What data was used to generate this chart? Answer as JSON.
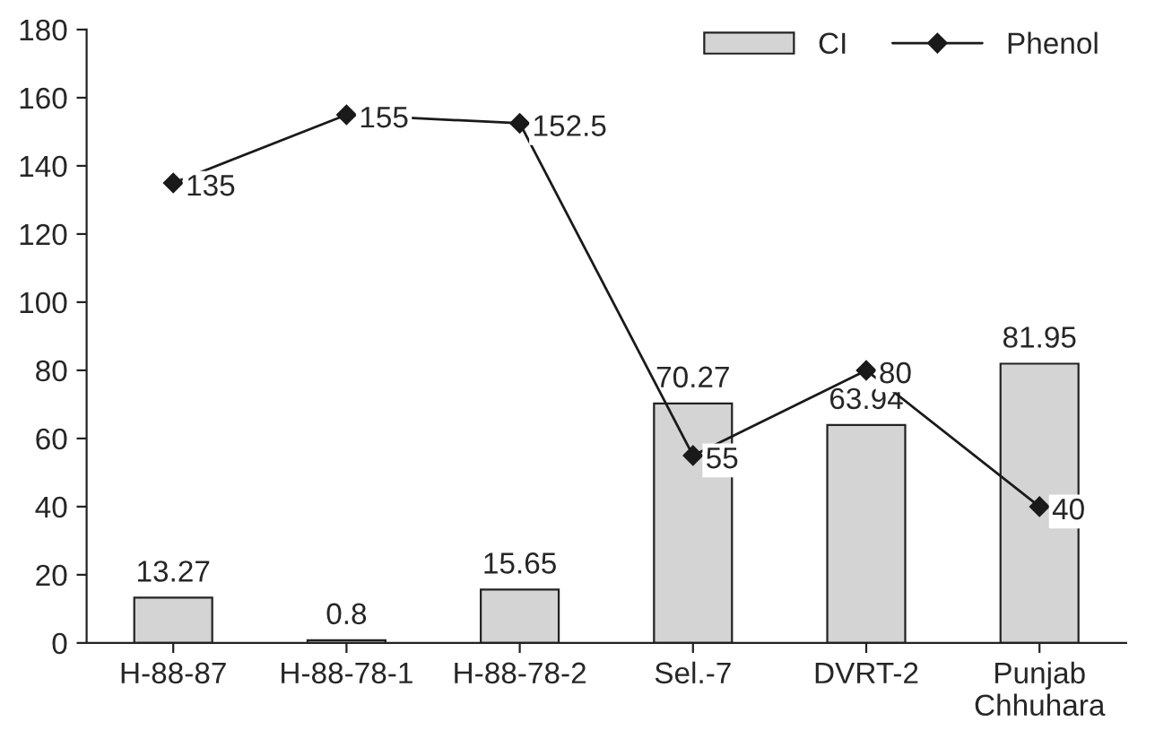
{
  "chart_data": {
    "type": "bar",
    "categories": [
      "H-88-87",
      "H-88-78-1",
      "H-88-78-2",
      "Sel.-7",
      "DVRT-2",
      "Punjab\nChhuhara"
    ],
    "series": [
      {
        "name": "CI",
        "color": "#d4d4d4",
        "values": [
          13.27,
          0.8,
          15.65,
          70.27,
          63.94,
          81.95
        ]
      },
      {
        "name": "Phenol",
        "type": "line",
        "color": "#1a1a1a",
        "marker": "diamond",
        "values": [
          135,
          155,
          152.5,
          55,
          80,
          40
        ]
      }
    ],
    "data_labels": true,
    "ylim": [
      0,
      180
    ],
    "yticks": [
      0,
      20,
      40,
      60,
      80,
      100,
      120,
      140,
      160,
      180
    ],
    "grid": false,
    "legend": "top right"
  }
}
